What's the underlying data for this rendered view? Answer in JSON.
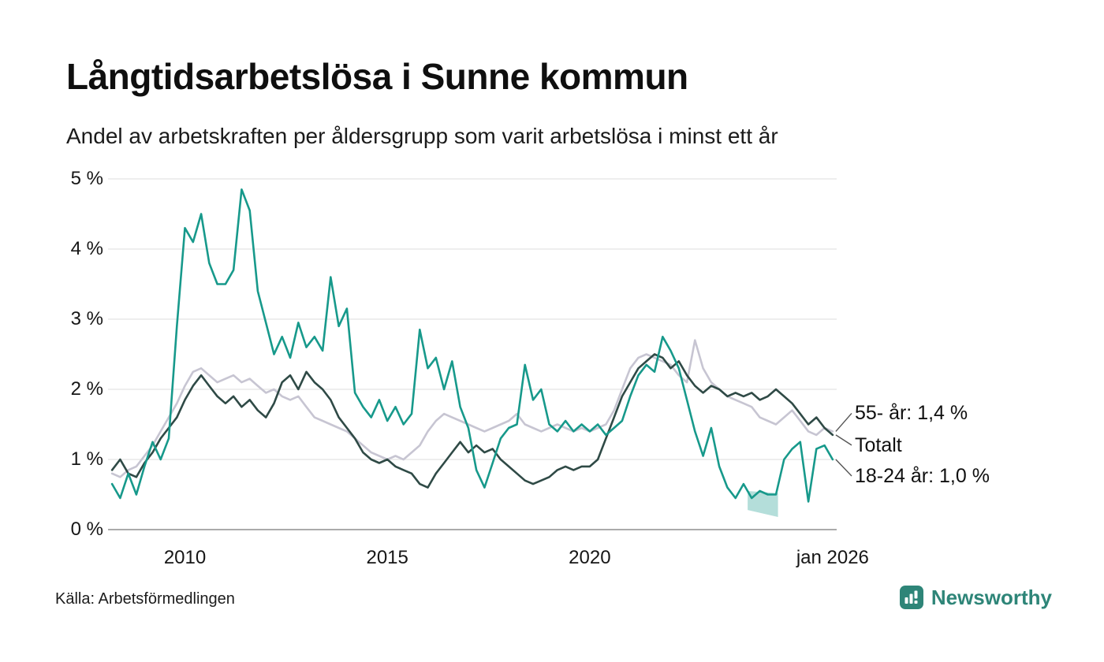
{
  "footer": {
    "source": "Källa: Arbetsförmedlingen",
    "brand": "Newsworthy",
    "brand_color": "#2E8578"
  },
  "chart_data": {
    "type": "line",
    "title": "Långtidsarbetslösa i Sunne kommun",
    "subtitle": "Andel av arbetskraften per åldersgrupp som varit arbetslösa i minst ett år",
    "xlabel": "",
    "ylabel": "",
    "xlim": [
      2008.1,
      2026.1
    ],
    "ylim": [
      0,
      5
    ],
    "grid": "horizontal",
    "grid_color": "#E4E4E4",
    "axis_color": "#8F8F8F",
    "legend_position": "line-end-labels-right",
    "yticks": [
      {
        "v": 5,
        "label": "5 %"
      },
      {
        "v": 4,
        "label": "4 %"
      },
      {
        "v": 3,
        "label": "3 %"
      },
      {
        "v": 2,
        "label": "2 %"
      },
      {
        "v": 1,
        "label": "1 %"
      },
      {
        "v": 0,
        "label": "0 %"
      }
    ],
    "xticks": [
      {
        "v": 2010,
        "label": "2010"
      },
      {
        "v": 2015,
        "label": "2015"
      },
      {
        "v": 2020,
        "label": "2020"
      },
      {
        "v": 2026,
        "label": "jan 2026"
      }
    ],
    "x": [
      2008.2,
      2008.4,
      2008.6,
      2008.8,
      2009,
      2009.2,
      2009.4,
      2009.6,
      2009.8,
      2010,
      2010.2,
      2010.4,
      2010.6,
      2010.8,
      2011,
      2011.2,
      2011.4,
      2011.6,
      2011.8,
      2012,
      2012.2,
      2012.4,
      2012.6,
      2012.8,
      2013,
      2013.2,
      2013.4,
      2013.6,
      2013.8,
      2014,
      2014.2,
      2014.4,
      2014.6,
      2014.8,
      2015,
      2015.2,
      2015.4,
      2015.6,
      2015.8,
      2016,
      2016.2,
      2016.4,
      2016.6,
      2016.8,
      2017,
      2017.2,
      2017.4,
      2017.6,
      2017.8,
      2018,
      2018.2,
      2018.4,
      2018.6,
      2018.8,
      2019,
      2019.2,
      2019.4,
      2019.6,
      2019.8,
      2020,
      2020.2,
      2020.4,
      2020.6,
      2020.8,
      2021,
      2021.2,
      2021.4,
      2021.6,
      2021.8,
      2022,
      2022.2,
      2022.4,
      2022.6,
      2022.8,
      2023,
      2023.2,
      2023.4,
      2023.6,
      2023.8,
      2024,
      2024.2,
      2024.4,
      2024.6,
      2024.8,
      2025,
      2025.2,
      2025.4,
      2025.6,
      2025.8,
      2026
    ],
    "series": [
      {
        "name": "55- år",
        "end_label": "55- år: 1,4 %",
        "color": "#C7C5D2",
        "y": [
          0.8,
          0.75,
          0.85,
          0.9,
          1.05,
          1.2,
          1.4,
          1.6,
          1.8,
          2.05,
          2.25,
          2.3,
          2.2,
          2.1,
          2.15,
          2.2,
          2.1,
          2.15,
          2.05,
          1.95,
          2.0,
          1.9,
          1.85,
          1.9,
          1.75,
          1.6,
          1.55,
          1.5,
          1.45,
          1.4,
          1.3,
          1.2,
          1.1,
          1.05,
          1.0,
          1.05,
          1.0,
          1.1,
          1.2,
          1.4,
          1.55,
          1.65,
          1.6,
          1.55,
          1.5,
          1.45,
          1.4,
          1.45,
          1.5,
          1.55,
          1.65,
          1.5,
          1.45,
          1.4,
          1.45,
          1.5,
          1.45,
          1.4,
          1.45,
          1.4,
          1.45,
          1.5,
          1.7,
          2.0,
          2.3,
          2.45,
          2.5,
          2.45,
          2.4,
          2.35,
          2.2,
          2.1,
          2.7,
          2.3,
          2.1,
          2.0,
          1.9,
          1.85,
          1.8,
          1.75,
          1.6,
          1.55,
          1.5,
          1.6,
          1.7,
          1.55,
          1.4,
          1.35,
          1.45,
          1.4
        ]
      },
      {
        "name": "Totalt",
        "end_label": "Totalt",
        "color": "#2F4A46",
        "y": [
          0.85,
          1.0,
          0.8,
          0.75,
          0.95,
          1.1,
          1.3,
          1.45,
          1.6,
          1.85,
          2.05,
          2.2,
          2.05,
          1.9,
          1.8,
          1.9,
          1.75,
          1.85,
          1.7,
          1.6,
          1.8,
          2.1,
          2.2,
          2.0,
          2.25,
          2.1,
          2.0,
          1.85,
          1.6,
          1.45,
          1.3,
          1.1,
          1.0,
          0.95,
          1.0,
          0.9,
          0.85,
          0.8,
          0.65,
          0.6,
          0.8,
          0.95,
          1.1,
          1.25,
          1.1,
          1.2,
          1.1,
          1.15,
          1.0,
          0.9,
          0.8,
          0.7,
          0.65,
          0.7,
          0.75,
          0.85,
          0.9,
          0.85,
          0.9,
          0.9,
          1.0,
          1.3,
          1.6,
          1.9,
          2.1,
          2.3,
          2.4,
          2.5,
          2.45,
          2.3,
          2.4,
          2.2,
          2.05,
          1.95,
          2.05,
          2.0,
          1.9,
          1.95,
          1.9,
          1.95,
          1.85,
          1.9,
          2.0,
          1.9,
          1.8,
          1.65,
          1.5,
          1.6,
          1.45,
          1.35
        ]
      },
      {
        "name": "18-24 år",
        "end_label": "18-24 år: 1,0 %",
        "color": "#17998B",
        "y": [
          0.65,
          0.45,
          0.8,
          0.5,
          0.9,
          1.25,
          1.0,
          1.3,
          2.9,
          4.3,
          4.1,
          4.5,
          3.8,
          3.5,
          3.5,
          3.7,
          4.85,
          4.55,
          3.4,
          2.95,
          2.5,
          2.75,
          2.45,
          2.95,
          2.6,
          2.75,
          2.55,
          3.6,
          2.9,
          3.15,
          1.95,
          1.75,
          1.6,
          1.85,
          1.55,
          1.75,
          1.5,
          1.65,
          2.85,
          2.3,
          2.45,
          2.0,
          2.4,
          1.75,
          1.45,
          0.85,
          0.6,
          0.95,
          1.3,
          1.45,
          1.5,
          2.35,
          1.85,
          2.0,
          1.5,
          1.4,
          1.55,
          1.4,
          1.5,
          1.4,
          1.5,
          1.35,
          1.45,
          1.55,
          1.9,
          2.2,
          2.35,
          2.25,
          2.75,
          2.55,
          2.3,
          1.85,
          1.4,
          1.05,
          1.45,
          0.9,
          0.6,
          0.45,
          0.65,
          0.45,
          0.55,
          0.5,
          0.5,
          1.0,
          1.15,
          1.25,
          0.4,
          1.15,
          1.2,
          1.0
        ]
      }
    ],
    "band": {
      "series": "18-24 år",
      "color": "rgba(23,153,139,0.32)",
      "points": [
        [
          2023.9,
          0.55
        ],
        [
          2024.65,
          0.52
        ],
        [
          2024.65,
          0.18
        ],
        [
          2023.9,
          0.28
        ]
      ]
    }
  }
}
